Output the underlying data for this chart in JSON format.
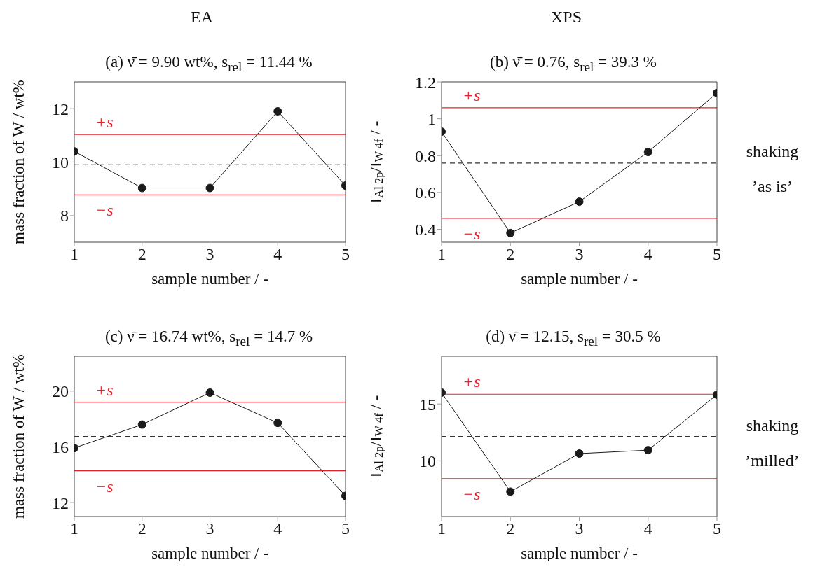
{
  "chart_data": [
    {
      "type": "line",
      "title": "(a)    ν̄ = 9.90 wt%, s$_{rel}$ = 11.44 %",
      "xlabel": "sample number / -",
      "ylabel": "mass fraction of W / wt%",
      "x": [
        1,
        2,
        3,
        4,
        5
      ],
      "values": [
        10.4,
        9.03,
        9.03,
        11.9,
        9.12
      ],
      "color": "#1a1a1a",
      "marker": "circle",
      "line_style": "solid",
      "xlim": [
        1,
        5
      ],
      "xticks": [
        1,
        2,
        3,
        4,
        5
      ],
      "ylim": [
        7,
        13
      ],
      "yticks": [
        8,
        10,
        12
      ],
      "grid": false,
      "legend": false,
      "ref_lines": [
        {
          "axis": "y",
          "value": 11.03,
          "label": "+s",
          "color": "#e3202b",
          "line_style": "solid"
        },
        {
          "axis": "y",
          "value": 9.9,
          "color": "#333333",
          "line_style": "dashed"
        },
        {
          "axis": "y",
          "value": 8.77,
          "label": "−s",
          "color": "#e3202b",
          "line_style": "solid"
        }
      ],
      "annotations": [
        "EA"
      ]
    },
    {
      "type": "line",
      "title": "(b)    ν̄ = 0.76, s$_{rel}$ = 39.3 %",
      "xlabel": "sample number / -",
      "ylabel": "I$_{Al 2p}$/I$_{W 4f}$ / -",
      "x": [
        1,
        2,
        3,
        4,
        5
      ],
      "values": [
        0.93,
        0.38,
        0.55,
        0.82,
        1.14
      ],
      "color": "#1a1a1a",
      "marker": "circle",
      "line_style": "solid",
      "xlim": [
        1,
        5
      ],
      "xticks": [
        1,
        2,
        3,
        4,
        5
      ],
      "ylim": [
        0.33,
        1.2
      ],
      "yticks": [
        0.4,
        0.6,
        0.8,
        1,
        1.2
      ],
      "grid": false,
      "legend": false,
      "ref_lines": [
        {
          "axis": "y",
          "value": 1.06,
          "label": "+s",
          "color": "#e3202b",
          "line_style": "solid"
        },
        {
          "axis": "y",
          "value": 0.76,
          "color": "#333333",
          "line_style": "dashed"
        },
        {
          "axis": "y",
          "value": 0.46,
          "label": "−s",
          "color": "#e3202b",
          "line_style": "solid"
        }
      ],
      "annotations": [
        "XPS",
        "shaking ’as is’"
      ]
    },
    {
      "type": "line",
      "title": "(c)    ν̄ = 16.74 wt%, s$_{rel}$ = 14.7 %",
      "xlabel": "sample number / -",
      "ylabel": "mass fraction of W / wt%",
      "x": [
        1,
        2,
        3,
        4,
        5
      ],
      "values": [
        15.92,
        17.6,
        19.89,
        17.72,
        12.48
      ],
      "color": "#1a1a1a",
      "marker": "circle",
      "line_style": "solid",
      "xlim": [
        1,
        5
      ],
      "xticks": [
        1,
        2,
        3,
        4,
        5
      ],
      "ylim": [
        11,
        22.5
      ],
      "yticks": [
        12,
        16,
        20
      ],
      "grid": false,
      "legend": false,
      "ref_lines": [
        {
          "axis": "y",
          "value": 19.2,
          "label": "+s",
          "color": "#e3202b",
          "line_style": "solid"
        },
        {
          "axis": "y",
          "value": 16.74,
          "color": "#333333",
          "line_style": "dashed"
        },
        {
          "axis": "y",
          "value": 14.28,
          "label": "−s",
          "color": "#e3202b",
          "line_style": "solid"
        }
      ]
    },
    {
      "type": "line",
      "title": "(d)    ν̄ = 12.15, s$_{rel}$ = 30.5 %",
      "xlabel": "sample number / -",
      "ylabel": "I$_{Al 2p}$/I$_{W 4f}$ / -",
      "x": [
        1,
        2,
        3,
        4,
        5
      ],
      "values": [
        16.0,
        7.29,
        10.64,
        10.94,
        15.82
      ],
      "color": "#1a1a1a",
      "marker": "circle",
      "line_style": "solid",
      "xlim": [
        1,
        5
      ],
      "xticks": [
        1,
        2,
        3,
        4,
        5
      ],
      "ylim": [
        5.1,
        19.2
      ],
      "yticks": [
        10,
        15
      ],
      "grid": false,
      "legend": false,
      "ref_lines": [
        {
          "axis": "y",
          "value": 15.86,
          "label": "+s",
          "color": "#e3202b",
          "line_style": "solid"
        },
        {
          "axis": "y",
          "value": 12.15,
          "color": "#333333",
          "line_style": "dashed"
        },
        {
          "axis": "y",
          "value": 8.44,
          "label": "−s",
          "color": "#e3202b",
          "line_style": "solid"
        }
      ],
      "annotations": [
        "shaking ’milled’"
      ]
    }
  ]
}
